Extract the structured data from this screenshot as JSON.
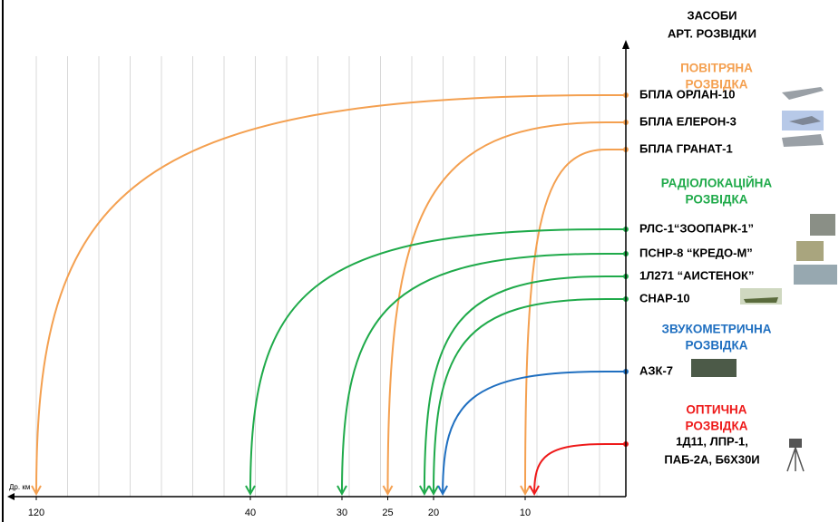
{
  "chart_data": {
    "type": "range",
    "title": [
      "ЗАСОБИ",
      "АРТ. РОЗВІДКИ"
    ],
    "x_label": "Др. км",
    "xlim": [
      0,
      120
    ],
    "xticks": [
      120,
      40,
      30,
      25,
      20,
      10
    ],
    "groups": [
      {
        "name": [
          "ПОВІТРЯНА",
          "РОЗВІДКА"
        ],
        "color": "#f4a050",
        "items": [
          {
            "name": [
              "БПЛА ОРЛАН-10"
            ],
            "value": 120
          },
          {
            "name": [
              "БПЛА ЕЛЕРОН-3"
            ],
            "value": 25
          },
          {
            "name": [
              "БПЛА ГРАНАТ-1"
            ],
            "value": 10
          }
        ]
      },
      {
        "name": [
          "РАДІОЛОКАЦІЙНА",
          "РОЗВІДКА"
        ],
        "color": "#1faa4a",
        "items": [
          {
            "name": [
              "РЛС-1“ЗООПАРК-1”"
            ],
            "value": 40
          },
          {
            "name": [
              "ПСНР-8 “КРЕДО-М”"
            ],
            "value": 30
          },
          {
            "name": [
              "1Л271 “АИСТЕНОК”"
            ],
            "value": 21
          },
          {
            "name": [
              "СНАР-10"
            ],
            "value": 20
          }
        ]
      },
      {
        "name": [
          "ЗВУКОМЕТРИЧНА",
          "РОЗВІДКА"
        ],
        "color": "#1f6fc0",
        "items": [
          {
            "name": [
              "АЗК-7"
            ],
            "value": 19
          }
        ]
      },
      {
        "name": [
          "ОПТИЧНА",
          "РОЗВІДКА"
        ],
        "color": "#ee1a1a",
        "items": [
          {
            "name": [
              "1Д11, ЛПР-1,",
              "ПАБ-2А, Б6Х30И"
            ],
            "value": 9
          }
        ]
      }
    ]
  }
}
